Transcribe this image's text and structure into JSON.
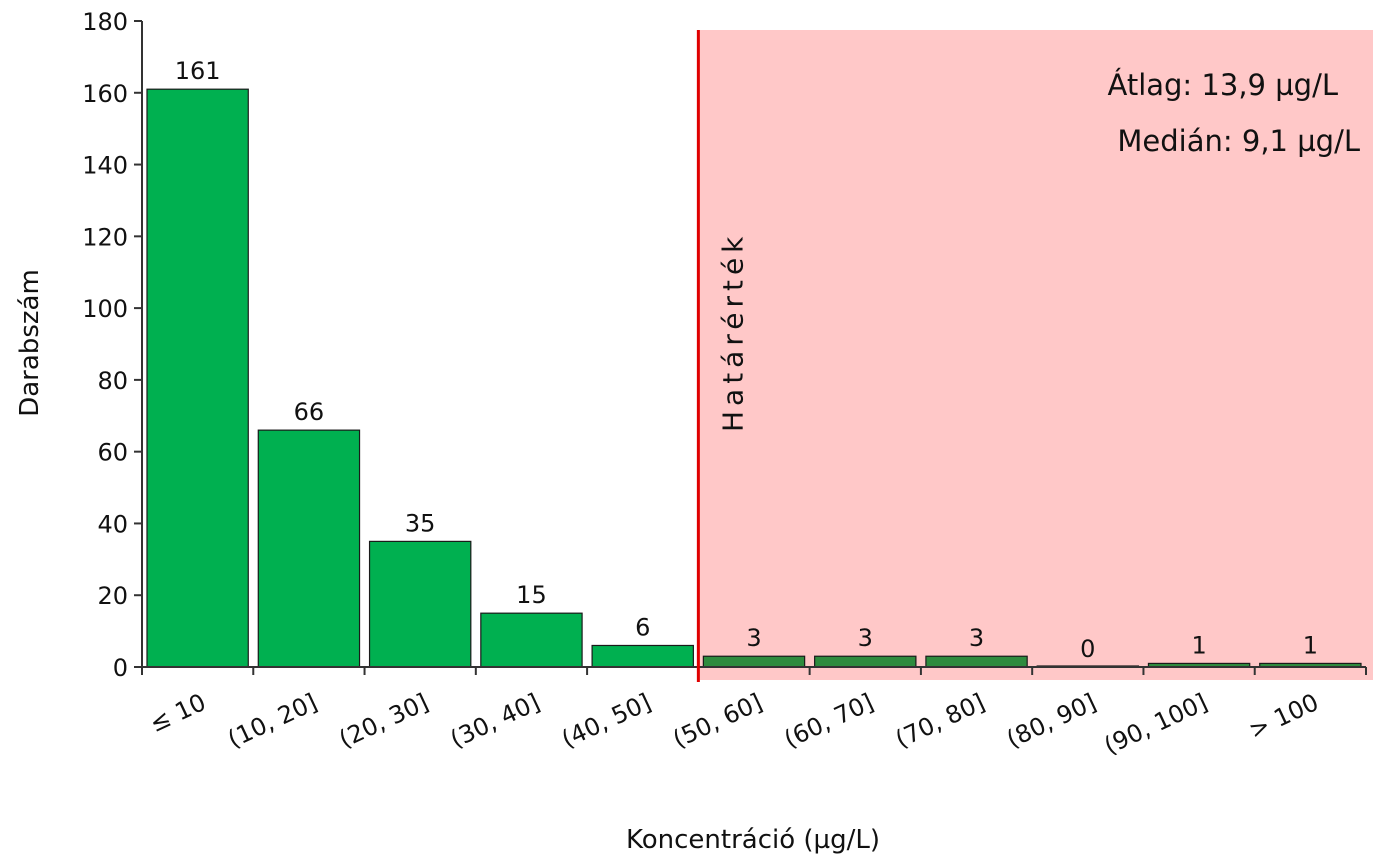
{
  "chart_data": {
    "type": "bar",
    "categories": [
      "≤ 10",
      "(10, 20]",
      "(20, 30]",
      "(30, 40]",
      "(40, 50]",
      "(50, 60]",
      "(60, 70]",
      "(70, 80]",
      "(80, 90]",
      "(90, 100]",
      "> 100"
    ],
    "values": [
      161,
      66,
      35,
      15,
      6,
      3,
      3,
      3,
      0,
      1,
      1
    ],
    "xlabel": "Koncentráció (µg/L)",
    "ylabel": "Darabszám",
    "ylim": [
      0,
      180
    ],
    "yticks": [
      0,
      20,
      40,
      60,
      80,
      100,
      120,
      140,
      160,
      180
    ],
    "grid": false,
    "bar_colors": {
      "below_limit": "#00b050",
      "above_limit": "#2e8b3e"
    },
    "limit": {
      "label": "Határérték",
      "position_category": "(50, 60]",
      "line_color": "#e00000",
      "region_color": "#ffc8c8"
    },
    "annotations": {
      "mean": "Átlag: 13,9 µg/L",
      "median": "Medián: 9,1 µg/L"
    }
  }
}
